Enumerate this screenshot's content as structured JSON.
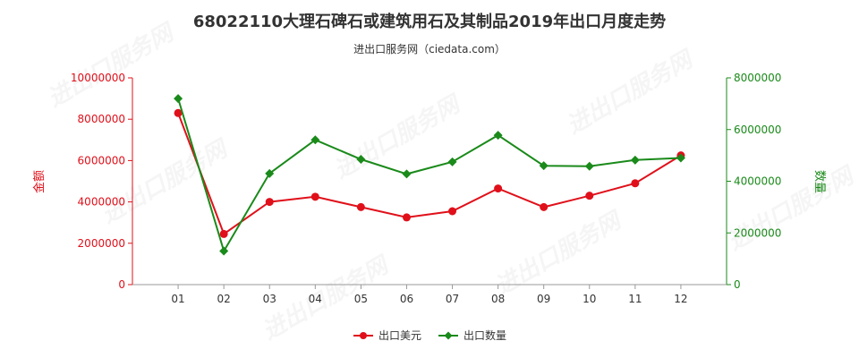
{
  "chart_data": {
    "type": "line",
    "title": "68022110大理石碑石或建筑用石及其制品2019年出口月度走势",
    "subtitle": "进出口服务网（ciedata.com）",
    "watermark": "进出口服务网",
    "categories": [
      "01",
      "02",
      "03",
      "04",
      "05",
      "06",
      "07",
      "08",
      "09",
      "10",
      "11",
      "12"
    ],
    "y_left": {
      "label": "金额",
      "range": [
        0,
        10000000
      ],
      "ticks": [
        "0",
        "2000000",
        "4000000",
        "6000000",
        "8000000",
        "10000000"
      ],
      "color": "#e0101a"
    },
    "y_right": {
      "label": "数量",
      "range": [
        0,
        8000000
      ],
      "ticks": [
        "0",
        "2000000",
        "4000000",
        "6000000",
        "8000000"
      ],
      "color": "#1a8a1a"
    },
    "series": [
      {
        "name": "出口美元",
        "axis": "left",
        "color": "#e0101a",
        "marker": "circle",
        "values": [
          8300000,
          2450000,
          4000000,
          4250000,
          3750000,
          3250000,
          3550000,
          4650000,
          3750000,
          4300000,
          4900000,
          6250000
        ]
      },
      {
        "name": "出口数量",
        "axis": "right",
        "color": "#1a8a1a",
        "marker": "diamond",
        "values": [
          7200000,
          1300000,
          4300000,
          5600000,
          4850000,
          4280000,
          4750000,
          5780000,
          4600000,
          4580000,
          4820000,
          4900000
        ]
      }
    ],
    "legend_position": "bottom-center"
  }
}
